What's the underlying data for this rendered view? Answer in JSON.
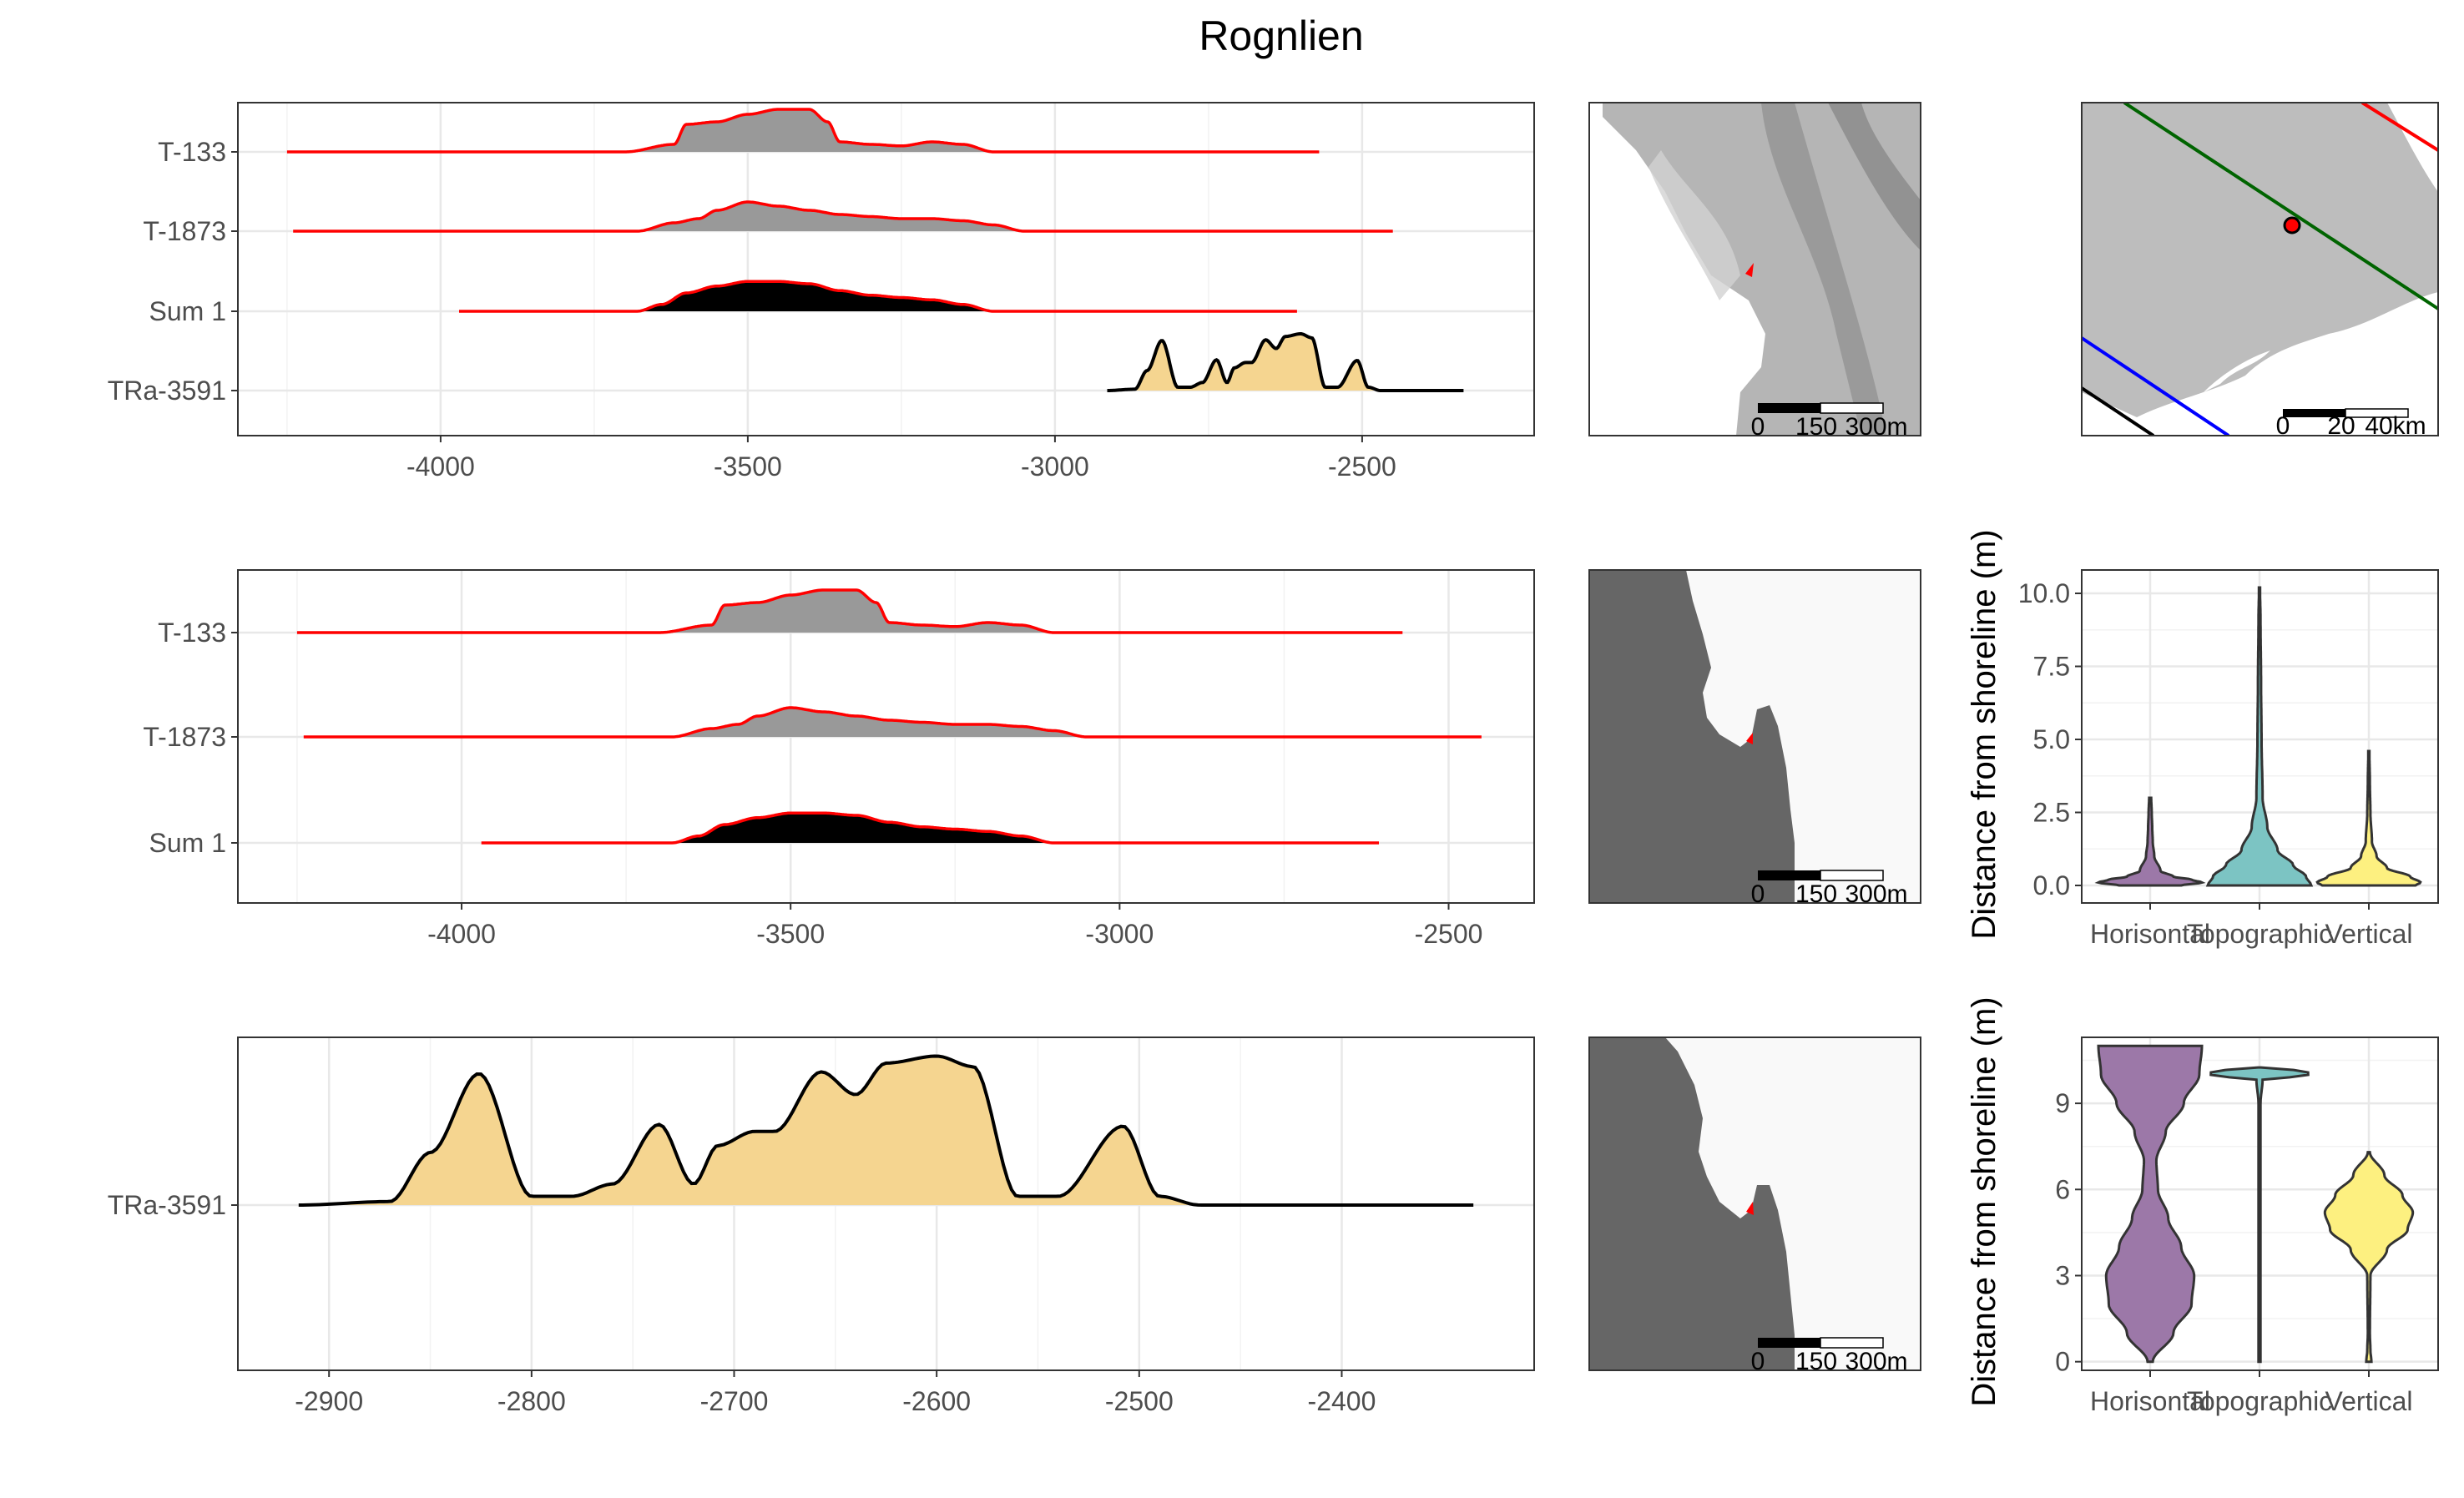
{
  "title": "Rognlien",
  "colors": {
    "red_line": "#ff0000",
    "sum_fill": "#000000",
    "site_fill": "#999999",
    "date_fill": "#f5d590",
    "violin_horizontal": "#9c78a8",
    "violin_topographic": "#7cc4c3",
    "violin_vertical": "#fdf080",
    "land_dark": "#666666",
    "sea_light": "#f9f9f9",
    "hillshade": "#b5b5b5"
  },
  "chart_data": [
    {
      "type": "area",
      "panel": "ridges-1",
      "rows": [
        "T-133",
        "T-1873",
        "Sum 1",
        "TRa-3591"
      ],
      "xticks": [
        -4000,
        -3500,
        -3000,
        -2500
      ],
      "xlim": [
        -4330,
        -2220
      ],
      "grid": true,
      "series": [
        {
          "name": "T-133",
          "range": [
            -4250,
            -2570
          ],
          "x": [
            -3700,
            -3620,
            -3600,
            -3550,
            -3500,
            -3450,
            -3400,
            -3370,
            -3350,
            -3300,
            -3250,
            -3200,
            -3150,
            -3100
          ],
          "density": [
            0,
            0.15,
            0.55,
            0.6,
            0.75,
            0.85,
            0.85,
            0.6,
            0.2,
            0.15,
            0.12,
            0.2,
            0.15,
            0
          ]
        },
        {
          "name": "T-1873",
          "range": [
            -4240,
            -2450
          ],
          "x": [
            -3680,
            -3620,
            -3580,
            -3550,
            -3500,
            -3450,
            -3400,
            -3350,
            -3300,
            -3250,
            -3200,
            -3150,
            -3100,
            -3050
          ],
          "density": [
            0,
            0.2,
            0.3,
            0.5,
            0.7,
            0.6,
            0.5,
            0.4,
            0.35,
            0.3,
            0.3,
            0.25,
            0.15,
            0
          ]
        },
        {
          "name": "Sum 1",
          "range": [
            -3970,
            -2605
          ],
          "x": [
            -3680,
            -3640,
            -3600,
            -3550,
            -3500,
            -3450,
            -3400,
            -3350,
            -3300,
            -3250,
            -3200,
            -3150,
            -3100
          ],
          "density": [
            0,
            0.15,
            0.4,
            0.55,
            0.65,
            0.65,
            0.6,
            0.45,
            0.35,
            0.3,
            0.25,
            0.15,
            0
          ]
        },
        {
          "name": "TRa-3591",
          "range": [
            -2915,
            -2335
          ],
          "x": [
            -2915,
            -2870,
            -2850,
            -2826,
            -2800,
            -2780,
            -2760,
            -2737,
            -2720,
            -2708,
            -2690,
            -2680,
            -2657,
            -2640,
            -2625,
            -2600,
            -2582,
            -2560,
            -2540,
            -2508,
            -2490,
            -2470,
            -2335
          ],
          "density": [
            0,
            0.02,
            0.3,
            0.75,
            0.05,
            0.05,
            0.12,
            0.46,
            0.12,
            0.34,
            0.42,
            0.42,
            0.76,
            0.63,
            0.81,
            0.85,
            0.79,
            0.05,
            0.05,
            0.45,
            0.05,
            0,
            0
          ]
        }
      ]
    },
    {
      "type": "area",
      "panel": "ridges-2",
      "rows": [
        "T-133",
        "T-1873",
        "Sum 1"
      ],
      "xticks": [
        -4000,
        -3500,
        -3000,
        -2500
      ],
      "xlim": [
        -4340,
        -2370
      ],
      "grid": true,
      "series": [
        {
          "name": "T-133",
          "range": [
            -4250,
            -2570
          ],
          "x": [
            -3700,
            -3620,
            -3600,
            -3550,
            -3500,
            -3450,
            -3400,
            -3370,
            -3350,
            -3300,
            -3250,
            -3200,
            -3150,
            -3100
          ],
          "density": [
            0,
            0.15,
            0.55,
            0.6,
            0.75,
            0.85,
            0.85,
            0.6,
            0.2,
            0.15,
            0.12,
            0.2,
            0.15,
            0
          ]
        },
        {
          "name": "T-1873",
          "range": [
            -4240,
            -2450
          ],
          "x": [
            -3680,
            -3620,
            -3580,
            -3550,
            -3500,
            -3450,
            -3400,
            -3350,
            -3300,
            -3250,
            -3200,
            -3150,
            -3100,
            -3050
          ],
          "density": [
            0,
            0.2,
            0.3,
            0.5,
            0.7,
            0.6,
            0.5,
            0.4,
            0.35,
            0.3,
            0.3,
            0.25,
            0.15,
            0
          ]
        },
        {
          "name": "Sum 1",
          "range": [
            -3970,
            -2605
          ],
          "x": [
            -3680,
            -3640,
            -3600,
            -3550,
            -3500,
            -3450,
            -3400,
            -3350,
            -3300,
            -3250,
            -3200,
            -3150,
            -3100
          ],
          "density": [
            0,
            0.15,
            0.4,
            0.55,
            0.65,
            0.65,
            0.6,
            0.45,
            0.35,
            0.3,
            0.25,
            0.15,
            0
          ]
        }
      ]
    },
    {
      "type": "area",
      "panel": "ridges-3",
      "rows": [
        "TRa-3591"
      ],
      "xticks": [
        -2900,
        -2800,
        -2700,
        -2600,
        -2500,
        -2400
      ],
      "xlim": [
        -2945,
        -2305
      ],
      "grid": true,
      "series": [
        {
          "name": "TRa-3591",
          "range": [
            -2915,
            -2335
          ],
          "x": [
            -2915,
            -2870,
            -2850,
            -2826,
            -2800,
            -2780,
            -2760,
            -2737,
            -2720,
            -2708,
            -2690,
            -2680,
            -2657,
            -2640,
            -2625,
            -2600,
            -2582,
            -2560,
            -2540,
            -2508,
            -2490,
            -2470,
            -2335
          ],
          "density": [
            0,
            0.02,
            0.3,
            0.75,
            0.05,
            0.05,
            0.12,
            0.46,
            0.12,
            0.34,
            0.42,
            0.42,
            0.76,
            0.63,
            0.81,
            0.85,
            0.79,
            0.05,
            0.05,
            0.45,
            0.05,
            0,
            0
          ]
        }
      ]
    },
    {
      "type": "violin",
      "panel": "violin-1",
      "categories": [
        "Horisontal",
        "Topographic",
        "Vertical"
      ],
      "ylabel": "Distance from shoreline (m)",
      "yticks": [
        "0.0",
        "2.5",
        "5.0",
        "7.5",
        "10.0"
      ],
      "ylim": [
        -0.6,
        10.8
      ],
      "grid": true,
      "series": [
        {
          "name": "Horisontal",
          "y": [
            0,
            0.1,
            0.2,
            0.3,
            0.5,
            1,
            1.5,
            2,
            2.5,
            3
          ],
          "width": [
            0.6,
            1,
            0.8,
            0.45,
            0.2,
            0.08,
            0.05,
            0.04,
            0.03,
            0.02
          ]
        },
        {
          "name": "Topographic",
          "y": [
            0,
            0.3,
            0.7,
            1.2,
            2,
            3,
            5,
            7,
            9,
            10.2
          ],
          "width": [
            1,
            0.9,
            0.65,
            0.35,
            0.15,
            0.06,
            0.04,
            0.03,
            0.02,
            0.01
          ]
        },
        {
          "name": "Vertical",
          "y": [
            0,
            0.1,
            0.3,
            0.6,
            1,
            1.5,
            2.5,
            3.5,
            4.6
          ],
          "width": [
            0.9,
            1,
            0.8,
            0.35,
            0.15,
            0.06,
            0.03,
            0.02,
            0.01
          ]
        }
      ]
    },
    {
      "type": "violin",
      "panel": "violin-2",
      "categories": [
        "Horisontal",
        "Topographic",
        "Vertical"
      ],
      "ylabel": "Distance from shoreline (m)",
      "yticks": [
        "0",
        "3",
        "6",
        "9"
      ],
      "ylim": [
        -0.3,
        11.3
      ],
      "grid": true,
      "series": [
        {
          "name": "Horisontal",
          "y": [
            0,
            1,
            2,
            3,
            4,
            5,
            6,
            7,
            8,
            9,
            10,
            11
          ],
          "width": [
            0.05,
            0.45,
            0.8,
            0.85,
            0.6,
            0.35,
            0.15,
            0.12,
            0.3,
            0.65,
            0.95,
            1
          ]
        },
        {
          "name": "Topographic",
          "y": [
            0,
            3,
            6,
            9,
            9.85,
            9.95,
            10.05,
            10.15,
            10.25
          ],
          "width": [
            0.02,
            0.02,
            0.02,
            0.02,
            0.06,
            0.9,
            1,
            0.7,
            0.03
          ]
        },
        {
          "name": "Vertical",
          "y": [
            0,
            0.4,
            1,
            3,
            3.9,
            4.6,
            5.2,
            5.8,
            6.5,
            7.3
          ],
          "width": [
            0.05,
            0.03,
            0.02,
            0.03,
            0.35,
            0.75,
            0.85,
            0.65,
            0.3,
            0.02
          ]
        }
      ]
    }
  ],
  "maps": {
    "scalebar_labels": [
      "0",
      "150",
      "300m"
    ],
    "overview_scalebar_labels": [
      "0",
      "20",
      "40km"
    ]
  }
}
